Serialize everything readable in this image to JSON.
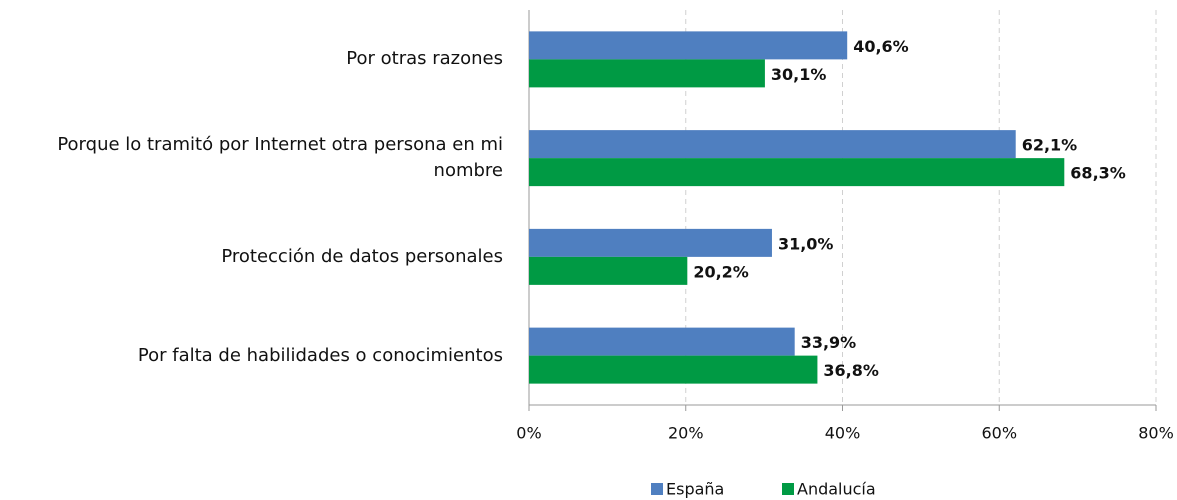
{
  "chart_data": {
    "type": "bar",
    "orientation": "horizontal",
    "categories": [
      "Por otras razones",
      "Porque lo tramitó por Internet otra persona en mi nombre",
      "Protección de datos personales",
      "Por falta de habilidades o conocimientos"
    ],
    "series": [
      {
        "name": "España",
        "color": "#4f7fc0",
        "values": [
          40.6,
          62.1,
          31.0,
          33.9
        ],
        "value_labels": [
          "40,6%",
          "62,1%",
          "31,0%",
          "33,9%"
        ]
      },
      {
        "name": "Andalucía",
        "color": "#009a44",
        "values": [
          30.1,
          68.3,
          20.2,
          36.8
        ],
        "value_labels": [
          "30,1%",
          "68,3%",
          "20,2%",
          "36,8%"
        ]
      }
    ],
    "xlim": [
      0,
      80
    ],
    "xticks": [
      {
        "value": 0,
        "label": "0%"
      },
      {
        "value": 20,
        "label": "20%"
      },
      {
        "value": 40,
        "label": "40%"
      },
      {
        "value": 60,
        "label": "60%"
      },
      {
        "value": 80,
        "label": "80%"
      }
    ],
    "grid": true,
    "legend": "bottom"
  }
}
